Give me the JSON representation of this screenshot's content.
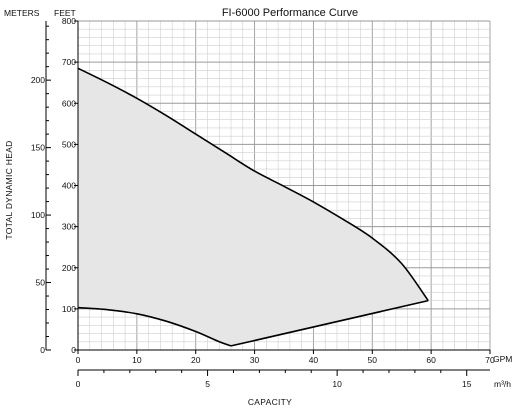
{
  "chart_data": {
    "type": "area",
    "title": "FI-6000 Performance Curve",
    "xlabel": "CAPACITY",
    "ylabel": "TOTAL DYNAMIC HEAD",
    "x_unit_primary": "GPM",
    "x_unit_secondary": "m³/h",
    "y_unit_primary": "FEET",
    "y_unit_secondary": "METERS",
    "xlim": [
      0,
      70
    ],
    "ylim": [
      0,
      800
    ],
    "x_ticks": [
      "0",
      "10",
      "20",
      "30",
      "40",
      "50",
      "60",
      "70"
    ],
    "y_ticks": [
      "0",
      "100",
      "200",
      "300",
      "400",
      "500",
      "600",
      "700",
      "800"
    ],
    "secondary_x_ticks": [
      "0",
      "5",
      "10",
      "15"
    ],
    "secondary_y_ticks": [
      "0",
      "50",
      "100",
      "150",
      "200"
    ],
    "grid": true,
    "fill_color": "#e6e6e6",
    "line_color": "#000000",
    "series": [
      {
        "name": "",
        "upper_curve": {
          "x": [
            0,
            5,
            10,
            15,
            20,
            25,
            30,
            35,
            40,
            45,
            50,
            55,
            59.5
          ],
          "y": [
            685,
            650,
            612,
            570,
            525,
            480,
            435,
            398,
            360,
            318,
            272,
            210,
            120
          ]
        },
        "lower_curve": {
          "x": [
            0,
            5,
            10,
            15,
            20,
            24,
            26,
            59.5
          ],
          "y": [
            103,
            98,
            88,
            70,
            45,
            20,
            10,
            120
          ]
        }
      }
    ]
  }
}
